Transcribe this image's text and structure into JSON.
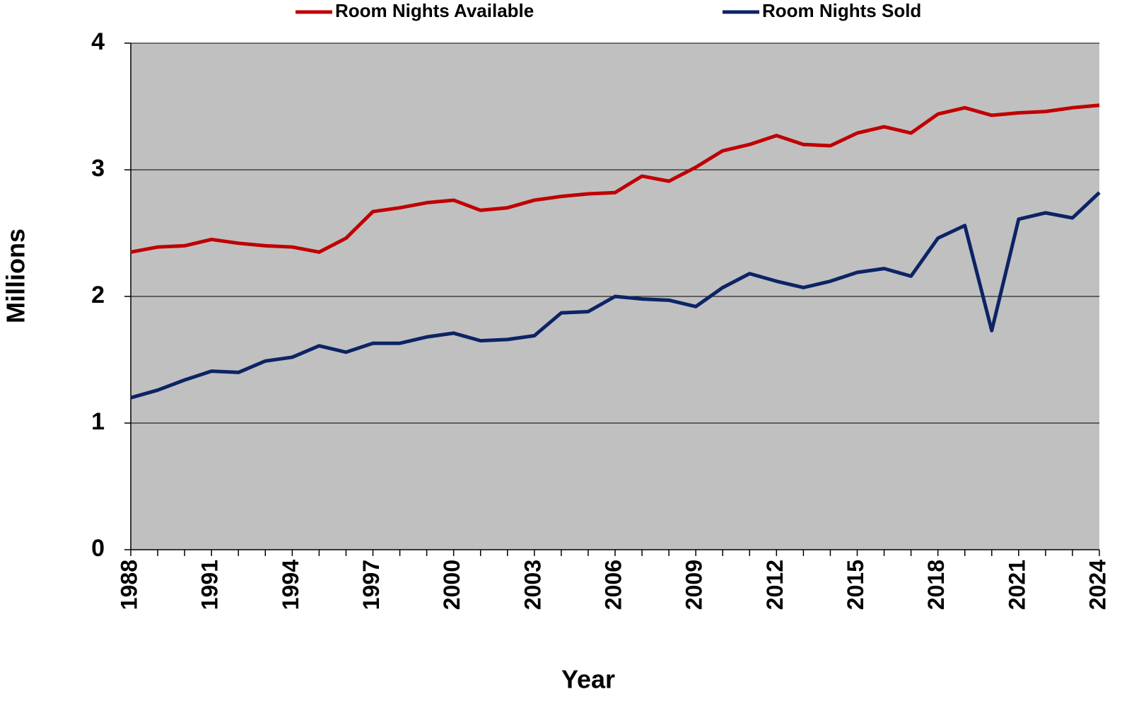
{
  "chart_data": {
    "type": "line",
    "x_label": "Year",
    "y_label": "Millions",
    "x": [
      1988,
      1989,
      1990,
      1991,
      1992,
      1993,
      1994,
      1995,
      1996,
      1997,
      1998,
      1999,
      2000,
      2001,
      2002,
      2003,
      2004,
      2005,
      2006,
      2007,
      2008,
      2009,
      2010,
      2011,
      2012,
      2013,
      2014,
      2015,
      2016,
      2017,
      2018,
      2019,
      2020,
      2021,
      2022,
      2023,
      2024
    ],
    "series": [
      {
        "name": "Room Nights Available",
        "color": "#c00000",
        "values": [
          2.35,
          2.39,
          2.4,
          2.45,
          2.42,
          2.4,
          2.39,
          2.35,
          2.46,
          2.67,
          2.7,
          2.74,
          2.76,
          2.68,
          2.7,
          2.76,
          2.79,
          2.81,
          2.82,
          2.95,
          2.91,
          3.02,
          3.15,
          3.2,
          3.27,
          3.2,
          3.19,
          3.29,
          3.34,
          3.29,
          3.44,
          3.49,
          3.43,
          3.45,
          3.46,
          3.49,
          3.51
        ]
      },
      {
        "name": "Room Nights Sold",
        "color": "#0d2366",
        "values": [
          1.2,
          1.26,
          1.34,
          1.41,
          1.4,
          1.49,
          1.52,
          1.61,
          1.56,
          1.63,
          1.63,
          1.68,
          1.71,
          1.65,
          1.66,
          1.69,
          1.87,
          1.88,
          2.0,
          1.98,
          1.97,
          1.92,
          2.07,
          2.18,
          2.12,
          2.07,
          2.12,
          2.19,
          2.22,
          2.16,
          2.46,
          2.56,
          1.73,
          2.61,
          2.66,
          2.62,
          2.82
        ]
      }
    ],
    "xlim": [
      1988,
      2024
    ],
    "xticks": [
      1988,
      1991,
      1994,
      1997,
      2000,
      2003,
      2006,
      2009,
      2012,
      2015,
      2018,
      2021,
      2024
    ],
    "ylim": [
      0,
      4
    ],
    "yticks": [
      0,
      1,
      2,
      3,
      4
    ],
    "grid": true,
    "legend": "top"
  }
}
